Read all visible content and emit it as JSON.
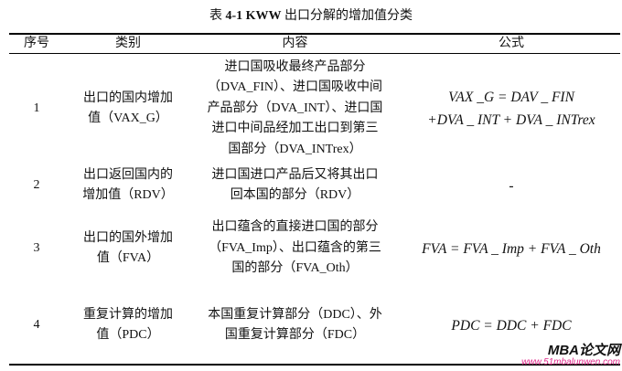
{
  "caption": {
    "prefix": "表",
    "number": "4-1 KWW",
    "text": "出口分解的增加值分类"
  },
  "headers": [
    "序号",
    "类别",
    "内容",
    "公式"
  ],
  "rows": [
    {
      "no": "1",
      "category": [
        "出口的国内增加",
        "值（VAX_G）"
      ],
      "content": [
        "进口国吸收最终产品部分",
        "（DVA_FIN）、进口国吸收中间",
        "产品部分（DVA_INT）、进口国",
        "进口中间品经加工出口到第三",
        "国部分（DVA_INTrex）"
      ],
      "formula": [
        "VAX _G = DAV _ FIN",
        "+DVA _ INT + DVA _ INTrex"
      ]
    },
    {
      "no": "2",
      "category": [
        "出口返回国内的",
        "增加值（RDV）"
      ],
      "content": [
        "进口国进口产品后又将其出口",
        "回本国的部分（RDV）"
      ],
      "formula": [
        "-"
      ]
    },
    {
      "no": "3",
      "category": [
        "出口的国外增加",
        "值（FVA）"
      ],
      "content": [
        "出口蕴含的直接进口国的部分",
        "（FVA_Imp）、出口蕴含的第三",
        "国的部分（FVA_Oth）"
      ],
      "formula": [
        "FVA = FVA _ Imp + FVA _ Oth"
      ]
    },
    {
      "no": "4",
      "category": [
        "重复计算的增加",
        "值（PDC）"
      ],
      "content": [
        "本国重复计算部分（DDC）、外",
        "国重复计算部分（FDC）"
      ],
      "formula": [
        "PDC = DDC + FDC"
      ]
    }
  ],
  "watermark": {
    "logo": "MBA论文网",
    "url": "www.51mbalunwen.com"
  }
}
